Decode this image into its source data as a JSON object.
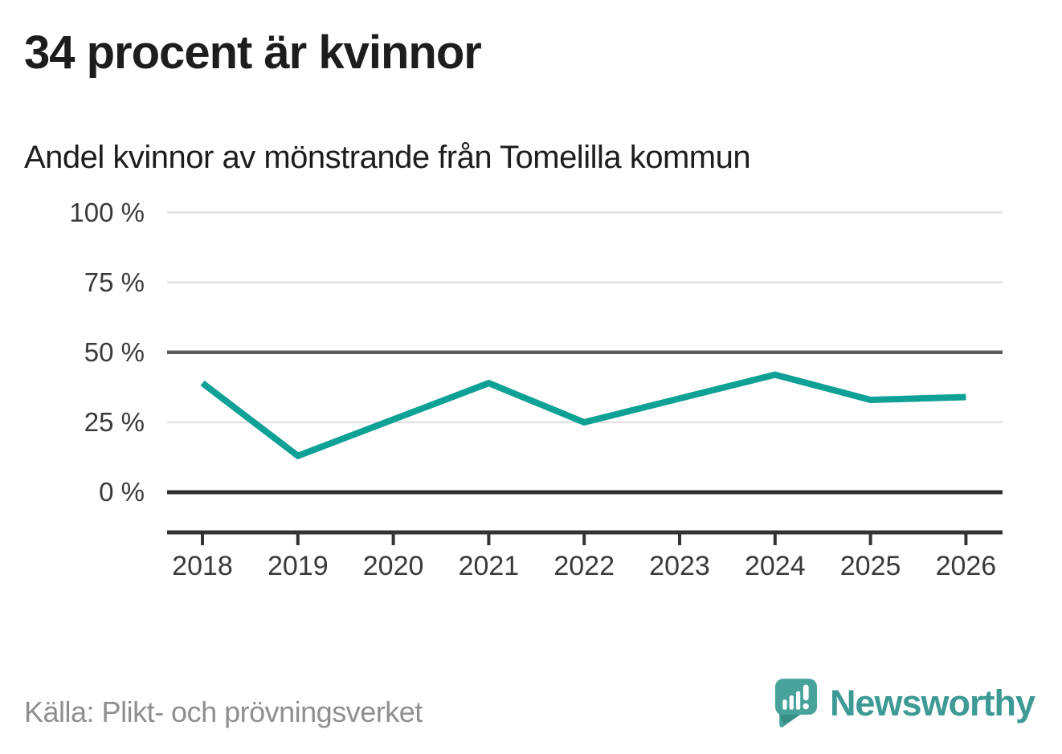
{
  "title": "34 procent är kvinnor",
  "subtitle": "Andel kvinnor av mönstrande från Tomelilla kommun",
  "source": "Källa: Plikt- och prövningsverket",
  "brand": {
    "name": "Newsworthy",
    "logo_icon": "newsworthy-pin-barchart-icon"
  },
  "colors": {
    "line": "#0fa096",
    "grid_light": "#e1e1e1",
    "grid_medium": "#5a5b5d",
    "grid_zero": "#2e2e2e",
    "axis": "#333333",
    "title_text": "#1d1d1b",
    "axis_text": "#3a3a3a",
    "source_text": "#8f8f8f",
    "brand_teal": "#3e9a94",
    "logo_fill": "#46a29a",
    "logo_shadow": "#2b7d77"
  },
  "chart_data": {
    "type": "line",
    "title": "Andel kvinnor av mönstrande från Tomelilla kommun",
    "x_labels": [
      "2018",
      "2019",
      "2020",
      "2021",
      "2022",
      "2023",
      "2024",
      "2025",
      "2026"
    ],
    "series": [
      {
        "name": "Andel kvinnor av mönstrande",
        "values": [
          39,
          13,
          26,
          39,
          25,
          33.5,
          42,
          33,
          34
        ]
      }
    ],
    "unit": "%",
    "ylim": [
      0,
      100
    ],
    "y_axis": {
      "ticks": [
        {
          "label": "100 %",
          "value": 100,
          "line": "light"
        },
        {
          "label": "75 %",
          "value": 75,
          "line": "light"
        },
        {
          "label": "50 %",
          "value": 50,
          "line": "medium"
        },
        {
          "label": "25 %",
          "value": 25,
          "line": "light"
        },
        {
          "label": "0 %",
          "value": 0,
          "line": "strong"
        }
      ]
    },
    "grid": true,
    "legend": "none",
    "line_color": "#0fa096"
  }
}
